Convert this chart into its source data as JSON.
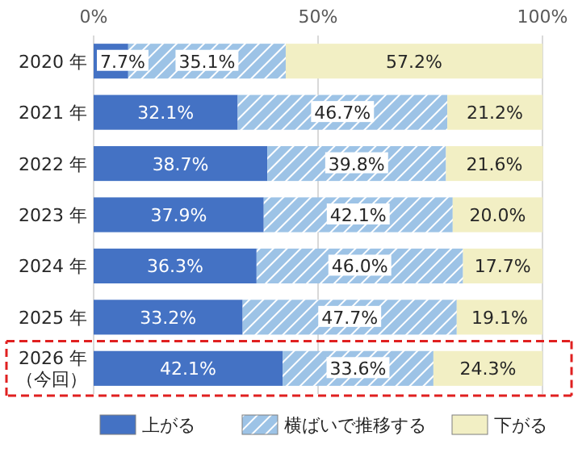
{
  "chart_data": {
    "type": "bar",
    "orientation": "horizontal",
    "stacked": true,
    "categories": [
      "2020 年",
      "2021 年",
      "2022 年",
      "2023 年",
      "2024 年",
      "2025 年",
      "2026 年（今回）"
    ],
    "series": [
      {
        "name": "上がる",
        "color": "#4472c4",
        "values": [
          7.7,
          32.1,
          38.7,
          37.9,
          36.3,
          33.2,
          42.1
        ],
        "value_labels": [
          "7.7%",
          "32.1%",
          "38.7%",
          "37.9%",
          "36.3%",
          "33.2%",
          "42.1%"
        ]
      },
      {
        "name": "横ばいで推移する",
        "color": "#9dc3e6",
        "values": [
          35.1,
          46.7,
          39.8,
          42.1,
          46.0,
          47.7,
          33.6
        ],
        "value_labels": [
          "35.1%",
          "46.7%",
          "39.8%",
          "42.1%",
          "46.0%",
          "47.7%",
          "33.6%"
        ]
      },
      {
        "name": "下がる",
        "color": "#f2efc4",
        "values": [
          57.2,
          21.2,
          21.6,
          20.0,
          17.7,
          19.1,
          24.3
        ],
        "value_labels": [
          "57.2%",
          "21.2%",
          "21.6%",
          "20.0%",
          "17.7%",
          "19.1%",
          "24.3%"
        ]
      }
    ],
    "xlim": [
      0,
      100
    ],
    "xticks": [
      {
        "value": 0,
        "label": "0%"
      },
      {
        "value": 50,
        "label": "50%"
      },
      {
        "value": 100,
        "label": "100%"
      }
    ],
    "ref_lines": [
      {
        "axis": "x",
        "value": 50,
        "color": "#d9d9d9"
      }
    ],
    "legend": "bottom"
  }
}
